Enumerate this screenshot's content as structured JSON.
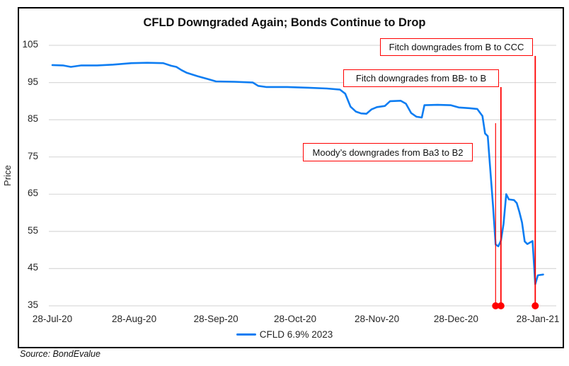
{
  "figure": {
    "title": "CFLD Downgraded Again; Bonds Continue to Drop",
    "y_axis_title": "Price",
    "legend_label": "CFLD 6.9% 2023",
    "source": "Source: BondEvalue"
  },
  "colors": {
    "line": "#0d7df2",
    "event": "#ff0000",
    "gridline": "#d9d9d9",
    "border": "#000000",
    "text": "#262626"
  },
  "chart_data": {
    "type": "line",
    "title": "CFLD Downgraded Again; Bonds Continue to Drop",
    "xlabel": "",
    "ylabel": "Price",
    "ylim": [
      35,
      105
    ],
    "y_ticks": [
      105,
      95,
      85,
      75,
      65,
      55,
      45,
      35
    ],
    "x_ticks": [
      {
        "label": "28-Jul-20",
        "date": "2020-07-28"
      },
      {
        "label": "28-Aug-20",
        "date": "2020-08-28"
      },
      {
        "label": "28-Sep-20",
        "date": "2020-09-28"
      },
      {
        "label": "28-Oct-20",
        "date": "2020-10-28"
      },
      {
        "label": "28-Nov-20",
        "date": "2020-11-28"
      },
      {
        "label": "28-Dec-20",
        "date": "2020-12-28"
      },
      {
        "label": "28-Jan-21",
        "date": "2021-01-28"
      }
    ],
    "grid": "horizontal",
    "legend_position": "bottom",
    "series": [
      {
        "name": "CFLD 6.9% 2023",
        "points": [
          [
            "2020-07-28",
            99.7
          ],
          [
            "2020-08-01",
            99.6
          ],
          [
            "2020-08-04",
            99.2
          ],
          [
            "2020-08-08",
            99.6
          ],
          [
            "2020-08-14",
            99.6
          ],
          [
            "2020-08-20",
            99.8
          ],
          [
            "2020-08-27",
            100.2
          ],
          [
            "2020-09-02",
            100.3
          ],
          [
            "2020-09-08",
            100.2
          ],
          [
            "2020-09-11",
            99.5
          ],
          [
            "2020-09-13",
            99.2
          ],
          [
            "2020-09-15",
            98.3
          ],
          [
            "2020-09-17",
            97.6
          ],
          [
            "2020-09-21",
            96.7
          ],
          [
            "2020-09-25",
            95.9
          ],
          [
            "2020-09-28",
            95.3
          ],
          [
            "2020-10-05",
            95.2
          ],
          [
            "2020-10-12",
            95.0
          ],
          [
            "2020-10-14",
            94.1
          ],
          [
            "2020-10-17",
            93.8
          ],
          [
            "2020-10-25",
            93.8
          ],
          [
            "2020-11-02",
            93.6
          ],
          [
            "2020-11-09",
            93.4
          ],
          [
            "2020-11-14",
            93.1
          ],
          [
            "2020-11-16",
            92.0
          ],
          [
            "2020-11-18",
            88.5
          ],
          [
            "2020-11-20",
            87.2
          ],
          [
            "2020-11-22",
            86.7
          ],
          [
            "2020-11-24",
            86.6
          ],
          [
            "2020-11-26",
            87.8
          ],
          [
            "2020-11-28",
            88.4
          ],
          [
            "2020-12-01",
            88.7
          ],
          [
            "2020-12-03",
            90.0
          ],
          [
            "2020-12-07",
            90.1
          ],
          [
            "2020-12-09",
            89.3
          ],
          [
            "2020-12-11",
            86.8
          ],
          [
            "2020-12-13",
            85.8
          ],
          [
            "2020-12-15",
            85.6
          ],
          [
            "2020-12-16",
            88.9
          ],
          [
            "2020-12-21",
            89.0
          ],
          [
            "2020-12-26",
            88.9
          ],
          [
            "2020-12-29",
            88.3
          ],
          [
            "2021-01-02",
            88.1
          ],
          [
            "2021-01-05",
            87.9
          ],
          [
            "2021-01-07",
            86.0
          ],
          [
            "2021-01-08",
            81.3
          ],
          [
            "2021-01-09",
            80.6
          ],
          [
            "2021-01-11",
            62.0
          ],
          [
            "2021-01-12",
            51.5
          ],
          [
            "2021-01-13",
            51.0
          ],
          [
            "2021-01-14",
            52.5
          ],
          [
            "2021-01-15",
            57.0
          ],
          [
            "2021-01-16",
            65.0
          ],
          [
            "2021-01-17",
            63.6
          ],
          [
            "2021-01-19",
            63.4
          ],
          [
            "2021-01-20",
            62.6
          ],
          [
            "2021-01-21",
            60.2
          ],
          [
            "2021-01-22",
            57.4
          ],
          [
            "2021-01-23",
            52.3
          ],
          [
            "2021-01-24",
            51.6
          ],
          [
            "2021-01-26",
            52.4
          ],
          [
            "2021-01-27",
            40.8
          ],
          [
            "2021-01-28",
            43.2
          ],
          [
            "2021-01-30",
            43.4
          ]
        ]
      }
    ],
    "events": [
      {
        "label": "Moody’s downgrades from Ba3 to B2",
        "date": "2021-01-12"
      },
      {
        "label": "Fitch downgrades from BB- to B",
        "date": "2021-01-14"
      },
      {
        "label": "Fitch downgrades from B to CCC",
        "date": "2021-01-27"
      }
    ]
  }
}
